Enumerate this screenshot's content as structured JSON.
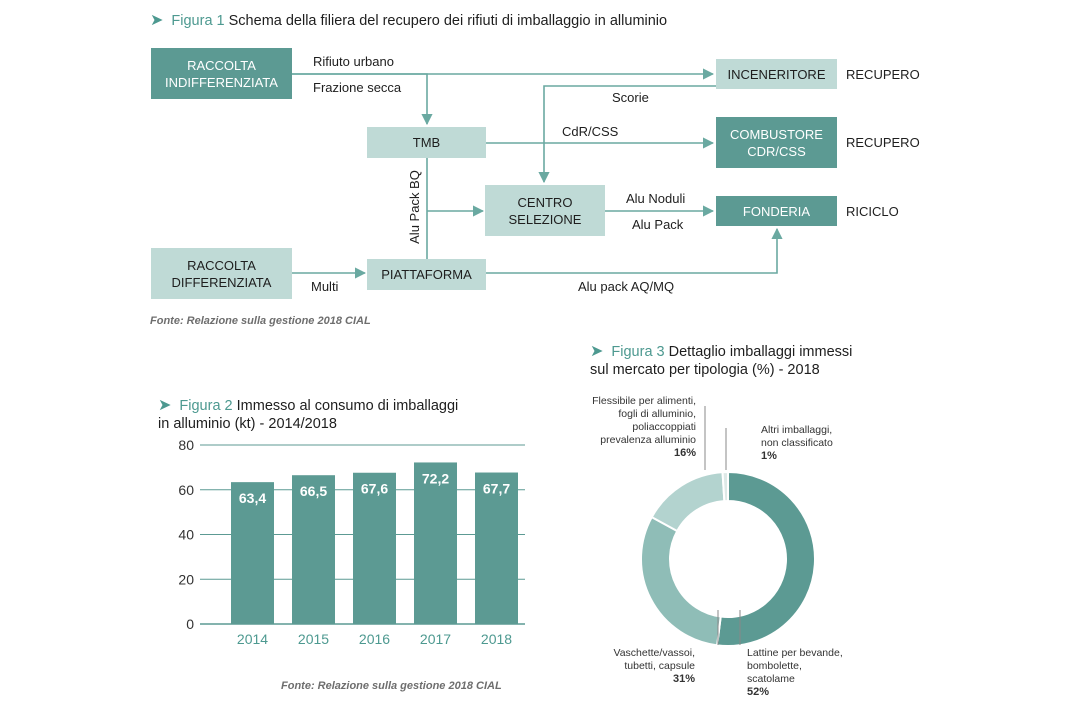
{
  "figure1": {
    "num": "Figura 1",
    "title": "Schema della filiera del recupero dei rifiuti di imballaggio in alluminio",
    "boxes": {
      "raccolta_indiff": "RACCOLTA\nINDIFFERENZIATA",
      "raccolta_diff": "RACCOLTA\nDIFFERENZIATA",
      "tmb": "TMB",
      "piattaforma": "PIATTAFORMA",
      "centro": "CENTRO\nSELEZIONE",
      "inceneritore": "INCENERITORE",
      "combustore": "COMBUSTORE\nCDR/CSS",
      "fonderia": "FONDERIA"
    },
    "labels": {
      "rifiuto_urbano": "Rifiuto urbano",
      "frazione_secca": "Frazione secca",
      "scorie": "Scorie",
      "cdr_css": "CdR/CSS",
      "alu_pack_bq": "Alu Pack BQ",
      "alu_noduli": "Alu Noduli",
      "alu_pack": "Alu Pack",
      "multi": "Multi",
      "alu_pack_aqmq": "Alu pack AQ/MQ"
    },
    "outcomes": {
      "inceneritore": "RECUPERO",
      "combustore": "RECUPERO",
      "fonderia": "RICICLO"
    },
    "source": "Fonte: Relazione sulla gestione 2018 CIAL"
  },
  "figure2": {
    "num": "Figura 2",
    "title_line1": "Immesso al consumo di imballaggi",
    "title_line2": "in alluminio (kt) - 2014/2018",
    "source": "Fonte: Relazione sulla gestione 2018 CIAL"
  },
  "figure3": {
    "num": "Figura 3",
    "title_line1": "Dettaglio imballaggi immessi",
    "title_line2": "sul mercato per tipologia (%) - 2018"
  },
  "chart_data": [
    {
      "type": "bar",
      "title": "Immesso al consumo di imballaggi in alluminio (kt) - 2014/2018",
      "categories": [
        "2014",
        "2015",
        "2016",
        "2017",
        "2018"
      ],
      "values": [
        63.4,
        66.5,
        67.6,
        72.2,
        67.7
      ],
      "value_labels": [
        "63,4",
        "66,5",
        "67,6",
        "72,2",
        "67,7"
      ],
      "ylim": [
        0,
        80
      ],
      "yticks": [
        0,
        20,
        40,
        60,
        80
      ],
      "grid": true,
      "color": "#5c9a93"
    },
    {
      "type": "pie",
      "donut": true,
      "title": "Dettaglio imballaggi immessi sul mercato per tipologia (%) - 2018",
      "slices": [
        {
          "label_lines": [
            "Lattine per bevande,",
            "bombolette,",
            "scatolame"
          ],
          "pct_label": "52%",
          "value": 52,
          "color": "#5c9a93"
        },
        {
          "label_lines": [
            "Vaschette/vassoi,",
            "tubetti, capsule"
          ],
          "pct_label": "31%",
          "value": 31,
          "color": "#8fbdb7"
        },
        {
          "label_lines": [
            "Flessibile per alimenti,",
            "fogli di alluminio,",
            "poliaccoppiati",
            "prevalenza alluminio"
          ],
          "pct_label": "16%",
          "value": 16,
          "color": "#b3d3cf"
        },
        {
          "label_lines": [
            "Altri imballaggi,",
            "non classificato"
          ],
          "pct_label": "1%",
          "value": 1,
          "color": "#dde9e7"
        }
      ]
    }
  ]
}
